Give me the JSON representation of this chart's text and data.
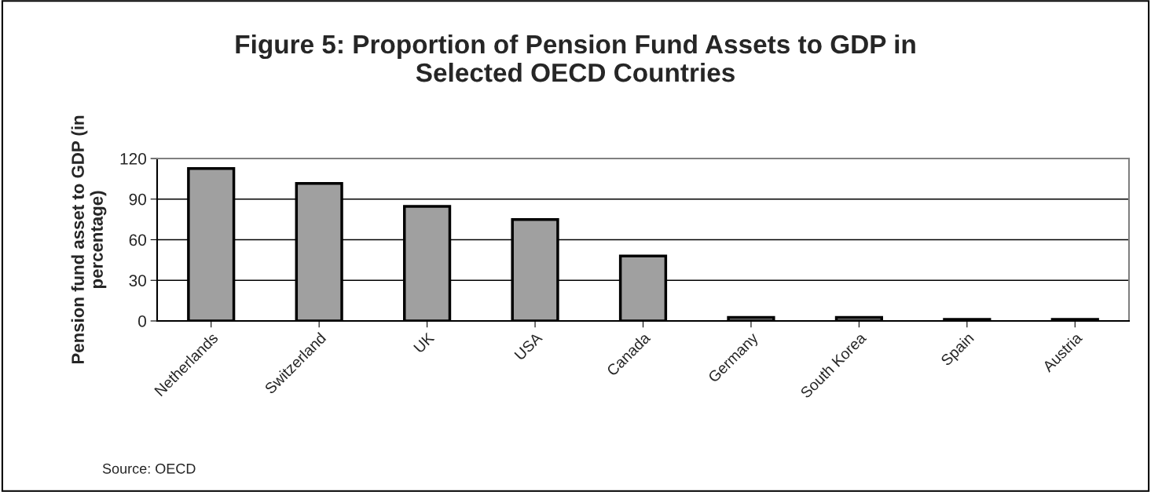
{
  "chart_data": {
    "type": "bar",
    "title": "Figure 5: Proportion of Pension Fund Assets to GDP in\nSelected OECD Countries",
    "ylabel": "Pension fund asset to GDP (in\npercentage)",
    "categories": [
      "Netherlands",
      "Switzerland",
      "UK",
      "USA",
      "Canada",
      "Germany",
      "South Korea",
      "Spain",
      "Austria"
    ],
    "values": [
      112.6,
      101.6,
      84.7,
      74.9,
      48,
      2.6,
      2.6,
      1.2,
      1.2
    ],
    "color": "#a0a0a0",
    "ylim": [
      0,
      120
    ],
    "yticks": [
      0,
      30,
      60,
      90,
      120
    ],
    "grid": "y",
    "annotations": [
      "Source: OECD"
    ]
  }
}
